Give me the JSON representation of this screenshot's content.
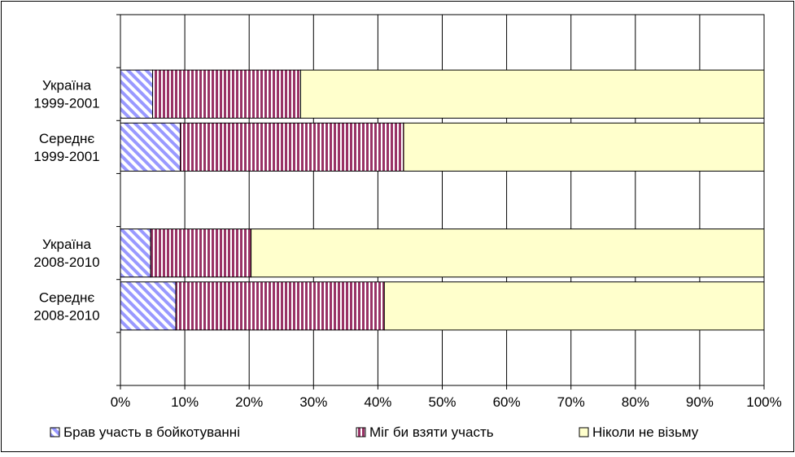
{
  "chart_data": {
    "type": "bar",
    "orientation": "horizontal",
    "stacked": "percent",
    "title": "",
    "xlabel": "",
    "ylabel": "",
    "xlim": [
      0,
      100
    ],
    "x_ticks": [
      "0%",
      "10%",
      "20%",
      "30%",
      "40%",
      "50%",
      "60%",
      "70%",
      "80%",
      "90%",
      "100%"
    ],
    "grid": true,
    "legend_position": "bottom",
    "categories": [
      {
        "line1": "Україна",
        "line2": "1999-2001"
      },
      {
        "line1": "Середнє",
        "line2": "1999-2001"
      },
      {
        "line1": "Україна",
        "line2": "2008-2010"
      },
      {
        "line1": "Середнє",
        "line2": "2008-2010"
      }
    ],
    "series": [
      {
        "name": "Брав участь в бойкотуванні",
        "color": "#9999ff",
        "pattern": "diagonal-stripes",
        "values": [
          5,
          9.3,
          4.7,
          8.6
        ]
      },
      {
        "name": "Міг би взяти участь",
        "color": "#993366",
        "pattern": "vertical-stripes",
        "values": [
          23,
          34.7,
          15.6,
          32.4
        ]
      },
      {
        "name": "Ніколи не візьму",
        "color": "#ffffcc",
        "pattern": "solid",
        "values": [
          72,
          56,
          79.7,
          59
        ]
      }
    ]
  }
}
